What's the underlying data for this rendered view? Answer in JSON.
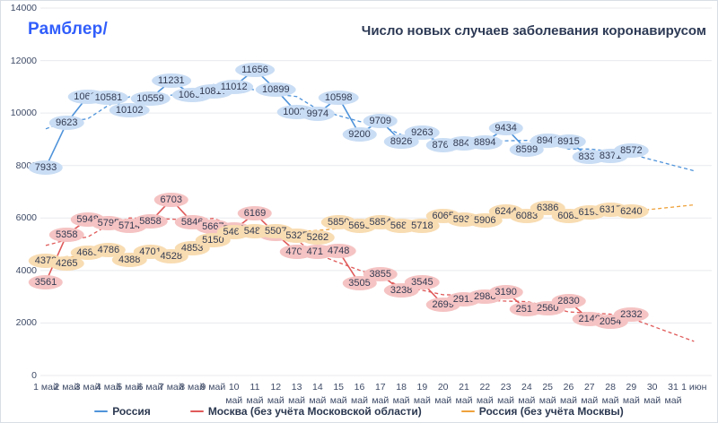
{
  "logo": "Рамблер/",
  "title": "Число новых случаев заболевания коронавирусом",
  "y_axis": {
    "min": 0,
    "max": 14000,
    "step": 2000,
    "ticks": [
      0,
      2000,
      4000,
      6000,
      8000,
      10000,
      12000,
      14000
    ]
  },
  "x_axis": {
    "labels": [
      "1 май",
      "2 май",
      "3 май",
      "4 май",
      "5 май",
      "6 май",
      "7 май",
      "8 май",
      "9 май",
      "10 май",
      "11 май",
      "12 май",
      "13 май",
      "14 май",
      "15 май",
      "16 май",
      "17 май",
      "18 май",
      "19 май",
      "20 май",
      "21 май",
      "22 май",
      "23 май",
      "24 май",
      "25 май",
      "26 май",
      "27 май",
      "28 май",
      "29 май",
      "30 май",
      "31 май",
      "1 июн"
    ]
  },
  "legend": [
    {
      "label": "Россия",
      "color": "#4f93da"
    },
    {
      "label": "Москва (без учёта Московской области)",
      "color": "#e05a5a"
    },
    {
      "label": "Россия (без учёта Москвы)",
      "color": "#efa23c"
    }
  ],
  "colors": {
    "grid": "#e8eaee",
    "axis_text": "#3d4a66",
    "bubble_text": "#333b52",
    "title": "#2d3a55",
    "logo": "#315efb"
  },
  "chart_data": {
    "type": "line",
    "title": "Число новых случаев заболевания коронавирусом",
    "x": [
      "1 май",
      "2 май",
      "3 май",
      "4 май",
      "5 май",
      "6 май",
      "7 май",
      "8 май",
      "9 май",
      "10 май",
      "11 май",
      "12 май",
      "13 май",
      "14 май",
      "15 май",
      "16 май",
      "17 май",
      "18 май",
      "19 май",
      "20 май",
      "21 май",
      "22 май",
      "23 май",
      "24 май",
      "25 май",
      "26 май",
      "27 май",
      "28 май",
      "29 май"
    ],
    "ylim": [
      0,
      14000
    ],
    "grid": "horizontal",
    "legend_position": "bottom",
    "series": [
      {
        "name": "Россия",
        "line_color": "#4f93da",
        "bubble_color": "#c9ddf4",
        "solid_line": true,
        "dashed_trend": true,
        "trend_end_value": 7800,
        "values": [
          7933,
          9623,
          10633,
          10581,
          10102,
          10559,
          11231,
          10699,
          10817,
          11012,
          11656,
          10899,
          10028,
          9974,
          10598,
          9200,
          9709,
          8926,
          9263,
          8764,
          8849,
          8894,
          9434,
          8599,
          8946,
          8915,
          8338,
          8371,
          8572
        ]
      },
      {
        "name": "Москва (без учёта Московской области)",
        "line_color": "#e05a5a",
        "bubble_color": "#f5c3c3",
        "solid_line": true,
        "dashed_trend": true,
        "trend_end_value": 1300,
        "values": [
          3561,
          5358,
          5948,
          5795,
          5714,
          5858,
          6703,
          5846,
          5667,
          5551,
          6169,
          5392,
          4703,
          4712,
          4748,
          3505,
          3855,
          3238,
          3545,
          2699,
          2913,
          2988,
          3190,
          2516,
          2560,
          2830,
          2140,
          2054,
          2332
        ]
      },
      {
        "name": "Россия (без учёта Москвы)",
        "line_color": "#efa23c",
        "bubble_color": "#f8dcb2",
        "solid_line": false,
        "dashed_trend": true,
        "trend_end_value": 6500,
        "values": [
          4372,
          4265,
          4685,
          4786,
          4388,
          4701,
          4528,
          4853,
          5150,
          5461,
          5487,
          5507,
          5325,
          5262,
          5850,
          5695,
          5854,
          5688,
          5718,
          6065,
          5936,
          5906,
          6244,
          6083,
          6386,
          6085,
          6198,
          6317,
          6240
        ]
      }
    ]
  }
}
